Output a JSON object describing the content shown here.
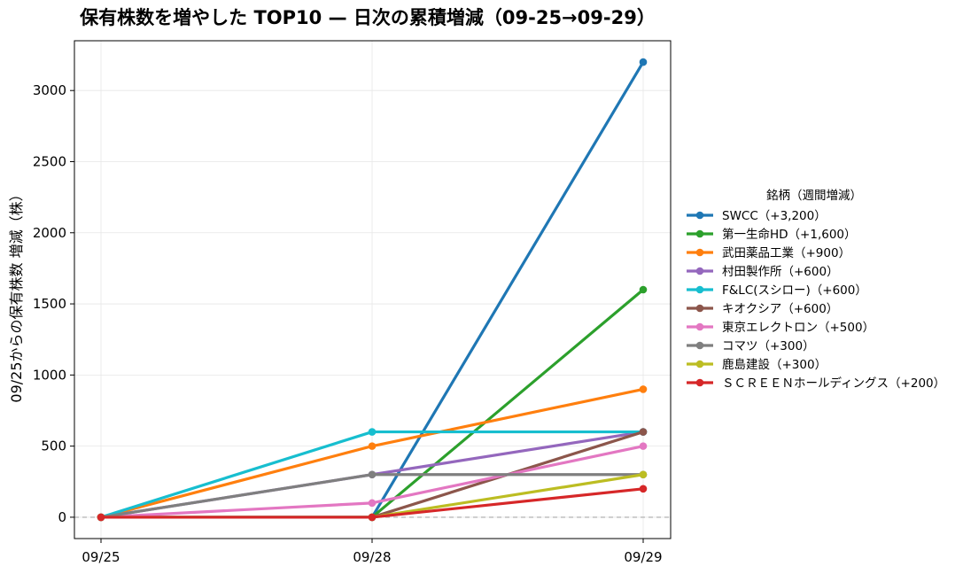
{
  "chart_data": {
    "type": "line",
    "title": "保有株数を増やした TOP10 — 日次の累積増減（09-25→09-29）",
    "xlabel": "",
    "ylabel": "09/25からの保有株数 増減（株）",
    "x": [
      "09/25",
      "09/28",
      "09/29"
    ],
    "ylim": [
      -150,
      3350
    ],
    "yticks": [
      0,
      500,
      1000,
      1500,
      2000,
      2500,
      3000
    ],
    "grid": true,
    "baseline": 0,
    "legend": {
      "title": "銘柄（週間増減）",
      "placement": "right"
    },
    "series": [
      {
        "name": "SWCC（+3,200）",
        "color": "#1f77b4",
        "values": [
          0,
          0,
          3200
        ]
      },
      {
        "name": "第一生命HD（+1,600）",
        "color": "#2ca02c",
        "values": [
          0,
          0,
          1600
        ]
      },
      {
        "name": "武田薬品工業（+900）",
        "color": "#ff7f0e",
        "values": [
          0,
          500,
          900
        ]
      },
      {
        "name": "村田製作所（+600）",
        "color": "#9467bd",
        "values": [
          0,
          300,
          600
        ]
      },
      {
        "name": "F&LC(スシロー)（+600）",
        "color": "#17becf",
        "values": [
          0,
          600,
          600
        ]
      },
      {
        "name": "キオクシア（+600）",
        "color": "#8c564b",
        "values": [
          0,
          0,
          600
        ]
      },
      {
        "name": "東京エレクトロン（+500）",
        "color": "#e377c2",
        "values": [
          0,
          100,
          500
        ]
      },
      {
        "name": "コマツ（+300）",
        "color": "#7f7f7f",
        "values": [
          0,
          300,
          300
        ]
      },
      {
        "name": "鹿島建設（+300）",
        "color": "#bcbd22",
        "values": [
          0,
          0,
          300
        ]
      },
      {
        "name": "ＳＣＲＥＥＮホールディングス（+200）",
        "color": "#d62728",
        "values": [
          0,
          0,
          200
        ]
      }
    ]
  }
}
